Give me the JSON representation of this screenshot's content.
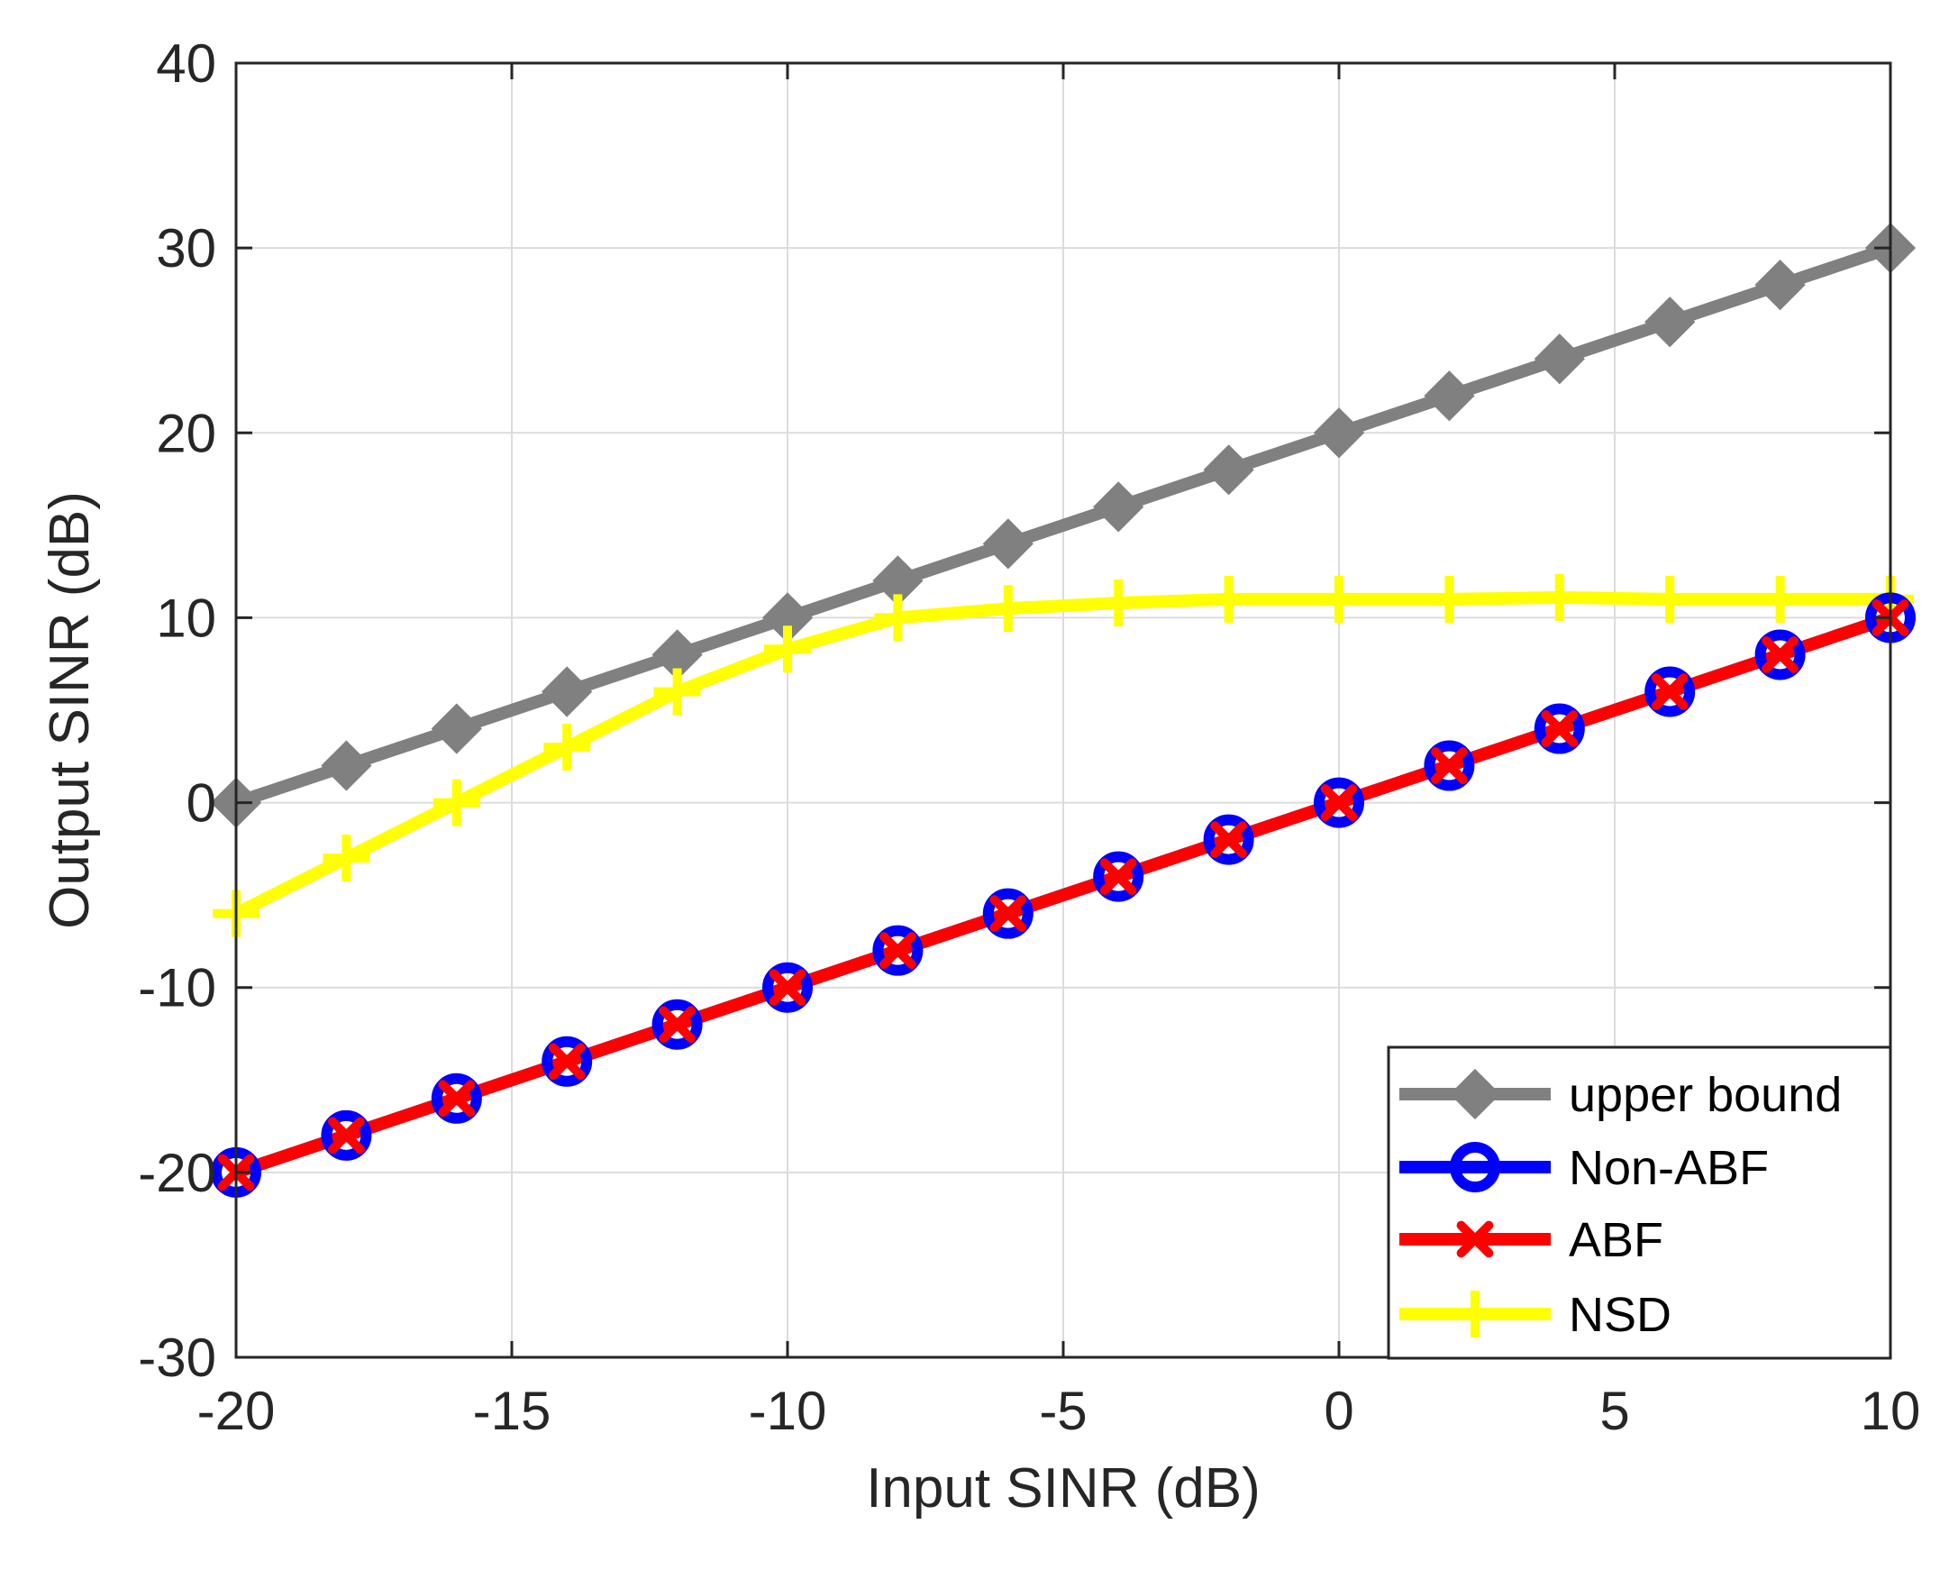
{
  "chart_data": {
    "type": "line",
    "title": "",
    "xlabel": "Input SINR (dB)",
    "ylabel": "Output SINR (dB)",
    "xlim": [
      -20,
      10
    ],
    "ylim": [
      -30,
      40
    ],
    "xticks": [
      -20,
      -15,
      -10,
      -5,
      0,
      5,
      10
    ],
    "yticks": [
      -30,
      -20,
      -10,
      0,
      10,
      20,
      30,
      40
    ],
    "grid": true,
    "legend_position": "bottom-right",
    "x": [
      -20,
      -18,
      -16,
      -14,
      -12,
      -10,
      -8,
      -6,
      -4,
      -2,
      0,
      2,
      4,
      6,
      8,
      10
    ],
    "series": [
      {
        "name": "upper bound",
        "color": "#808080",
        "marker": "diamond",
        "values": [
          0,
          2,
          4,
          6,
          8,
          10,
          12,
          14,
          16,
          18,
          20,
          22,
          24,
          26,
          28,
          30
        ]
      },
      {
        "name": "Non-ABF",
        "color": "#0000ff",
        "marker": "circle",
        "values": [
          -20,
          -18,
          -16,
          -14,
          -12,
          -10,
          -8,
          -6,
          -4,
          -2,
          0,
          2,
          4,
          6,
          8,
          10
        ]
      },
      {
        "name": "ABF",
        "color": "#ff0000",
        "marker": "x",
        "values": [
          -20,
          -18,
          -16,
          -14,
          -12,
          -10,
          -8,
          -6,
          -4,
          -2,
          0,
          2,
          4,
          6,
          8,
          10
        ]
      },
      {
        "name": "NSD",
        "color": "#ffff00",
        "marker": "plus",
        "values": [
          -6,
          -3,
          0,
          3,
          6,
          8.3,
          10,
          10.5,
          10.8,
          11,
          11,
          11,
          11.1,
          11,
          11,
          11
        ]
      }
    ]
  }
}
